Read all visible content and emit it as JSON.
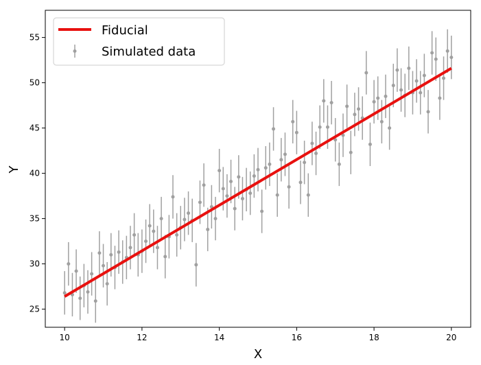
{
  "chart_data": {
    "type": "scatter",
    "xlabel": "X",
    "ylabel": "Y",
    "xlim": [
      9.5,
      20.5
    ],
    "ylim": [
      23,
      58
    ],
    "x_ticks": [
      10,
      12,
      14,
      16,
      18,
      20
    ],
    "y_ticks": [
      25,
      30,
      35,
      40,
      45,
      50,
      55
    ],
    "x_tick_labels": [
      "10",
      "12",
      "14",
      "16",
      "18",
      "20"
    ],
    "y_tick_labels": [
      "25",
      "30",
      "35",
      "40",
      "45",
      "50",
      "55"
    ],
    "grid": false,
    "legend_position": "top-left",
    "colors": {
      "fiducial": "#e8110f",
      "data": "#a0a0a0"
    },
    "series": [
      {
        "name": "Fiducial",
        "kind": "line",
        "x": [
          10,
          20
        ],
        "y": [
          26.4,
          51.6
        ]
      },
      {
        "name": "Simulated data",
        "kind": "errorbar",
        "x": [
          10.0,
          10.1,
          10.2,
          10.3,
          10.4,
          10.5,
          10.6,
          10.7,
          10.8,
          10.9,
          11.0,
          11.1,
          11.2,
          11.3,
          11.4,
          11.5,
          11.6,
          11.7,
          11.8,
          11.9,
          12.0,
          12.1,
          12.2,
          12.3,
          12.4,
          12.5,
          12.6,
          12.7,
          12.8,
          12.9,
          13.0,
          13.1,
          13.2,
          13.3,
          13.4,
          13.5,
          13.6,
          13.7,
          13.8,
          13.9,
          14.0,
          14.1,
          14.2,
          14.3,
          14.4,
          14.5,
          14.6,
          14.7,
          14.8,
          14.9,
          15.0,
          15.1,
          15.2,
          15.3,
          15.4,
          15.5,
          15.6,
          15.7,
          15.8,
          15.9,
          16.0,
          16.1,
          16.2,
          16.3,
          16.4,
          16.5,
          16.6,
          16.7,
          16.8,
          16.9,
          17.0,
          17.1,
          17.2,
          17.3,
          17.4,
          17.5,
          17.6,
          17.7,
          17.8,
          17.9,
          18.0,
          18.1,
          18.2,
          18.3,
          18.4,
          18.5,
          18.6,
          18.7,
          18.8,
          18.9,
          19.0,
          19.1,
          19.2,
          19.3,
          19.4,
          19.5,
          19.6,
          19.7,
          19.8,
          19.9,
          20.0
        ],
        "y": [
          26.8,
          30.0,
          26.6,
          29.2,
          26.2,
          27.6,
          26.9,
          28.9,
          25.9,
          31.2,
          29.8,
          27.8,
          31.0,
          29.6,
          31.3,
          30.2,
          30.7,
          31.8,
          33.2,
          31.0,
          31.4,
          32.5,
          34.2,
          33.6,
          31.8,
          35.0,
          30.8,
          33.0,
          37.4,
          33.2,
          34.0,
          34.9,
          35.6,
          34.8,
          29.9,
          36.8,
          38.7,
          33.8,
          36.3,
          35.0,
          40.3,
          38.3,
          37.5,
          39.1,
          36.1,
          39.6,
          37.2,
          38.2,
          37.8,
          39.7,
          40.4,
          35.8,
          40.6,
          41.0,
          44.9,
          37.6,
          41.5,
          42.1,
          38.5,
          45.7,
          44.5,
          39.0,
          41.2,
          37.6,
          43.3,
          42.2,
          45.1,
          48.0,
          45.1,
          47.8,
          43.7,
          41.0,
          44.2,
          47.4,
          42.3,
          46.5,
          47.1,
          46.1,
          51.1,
          43.2,
          47.9,
          48.3,
          45.7,
          48.5,
          45.0,
          49.7,
          51.4,
          49.2,
          48.6,
          51.6,
          48.9,
          50.2,
          48.9,
          50.8,
          46.8,
          53.3,
          52.6,
          48.3,
          50.5,
          53.5,
          52.8
        ],
        "yerr": 2.4
      }
    ]
  }
}
